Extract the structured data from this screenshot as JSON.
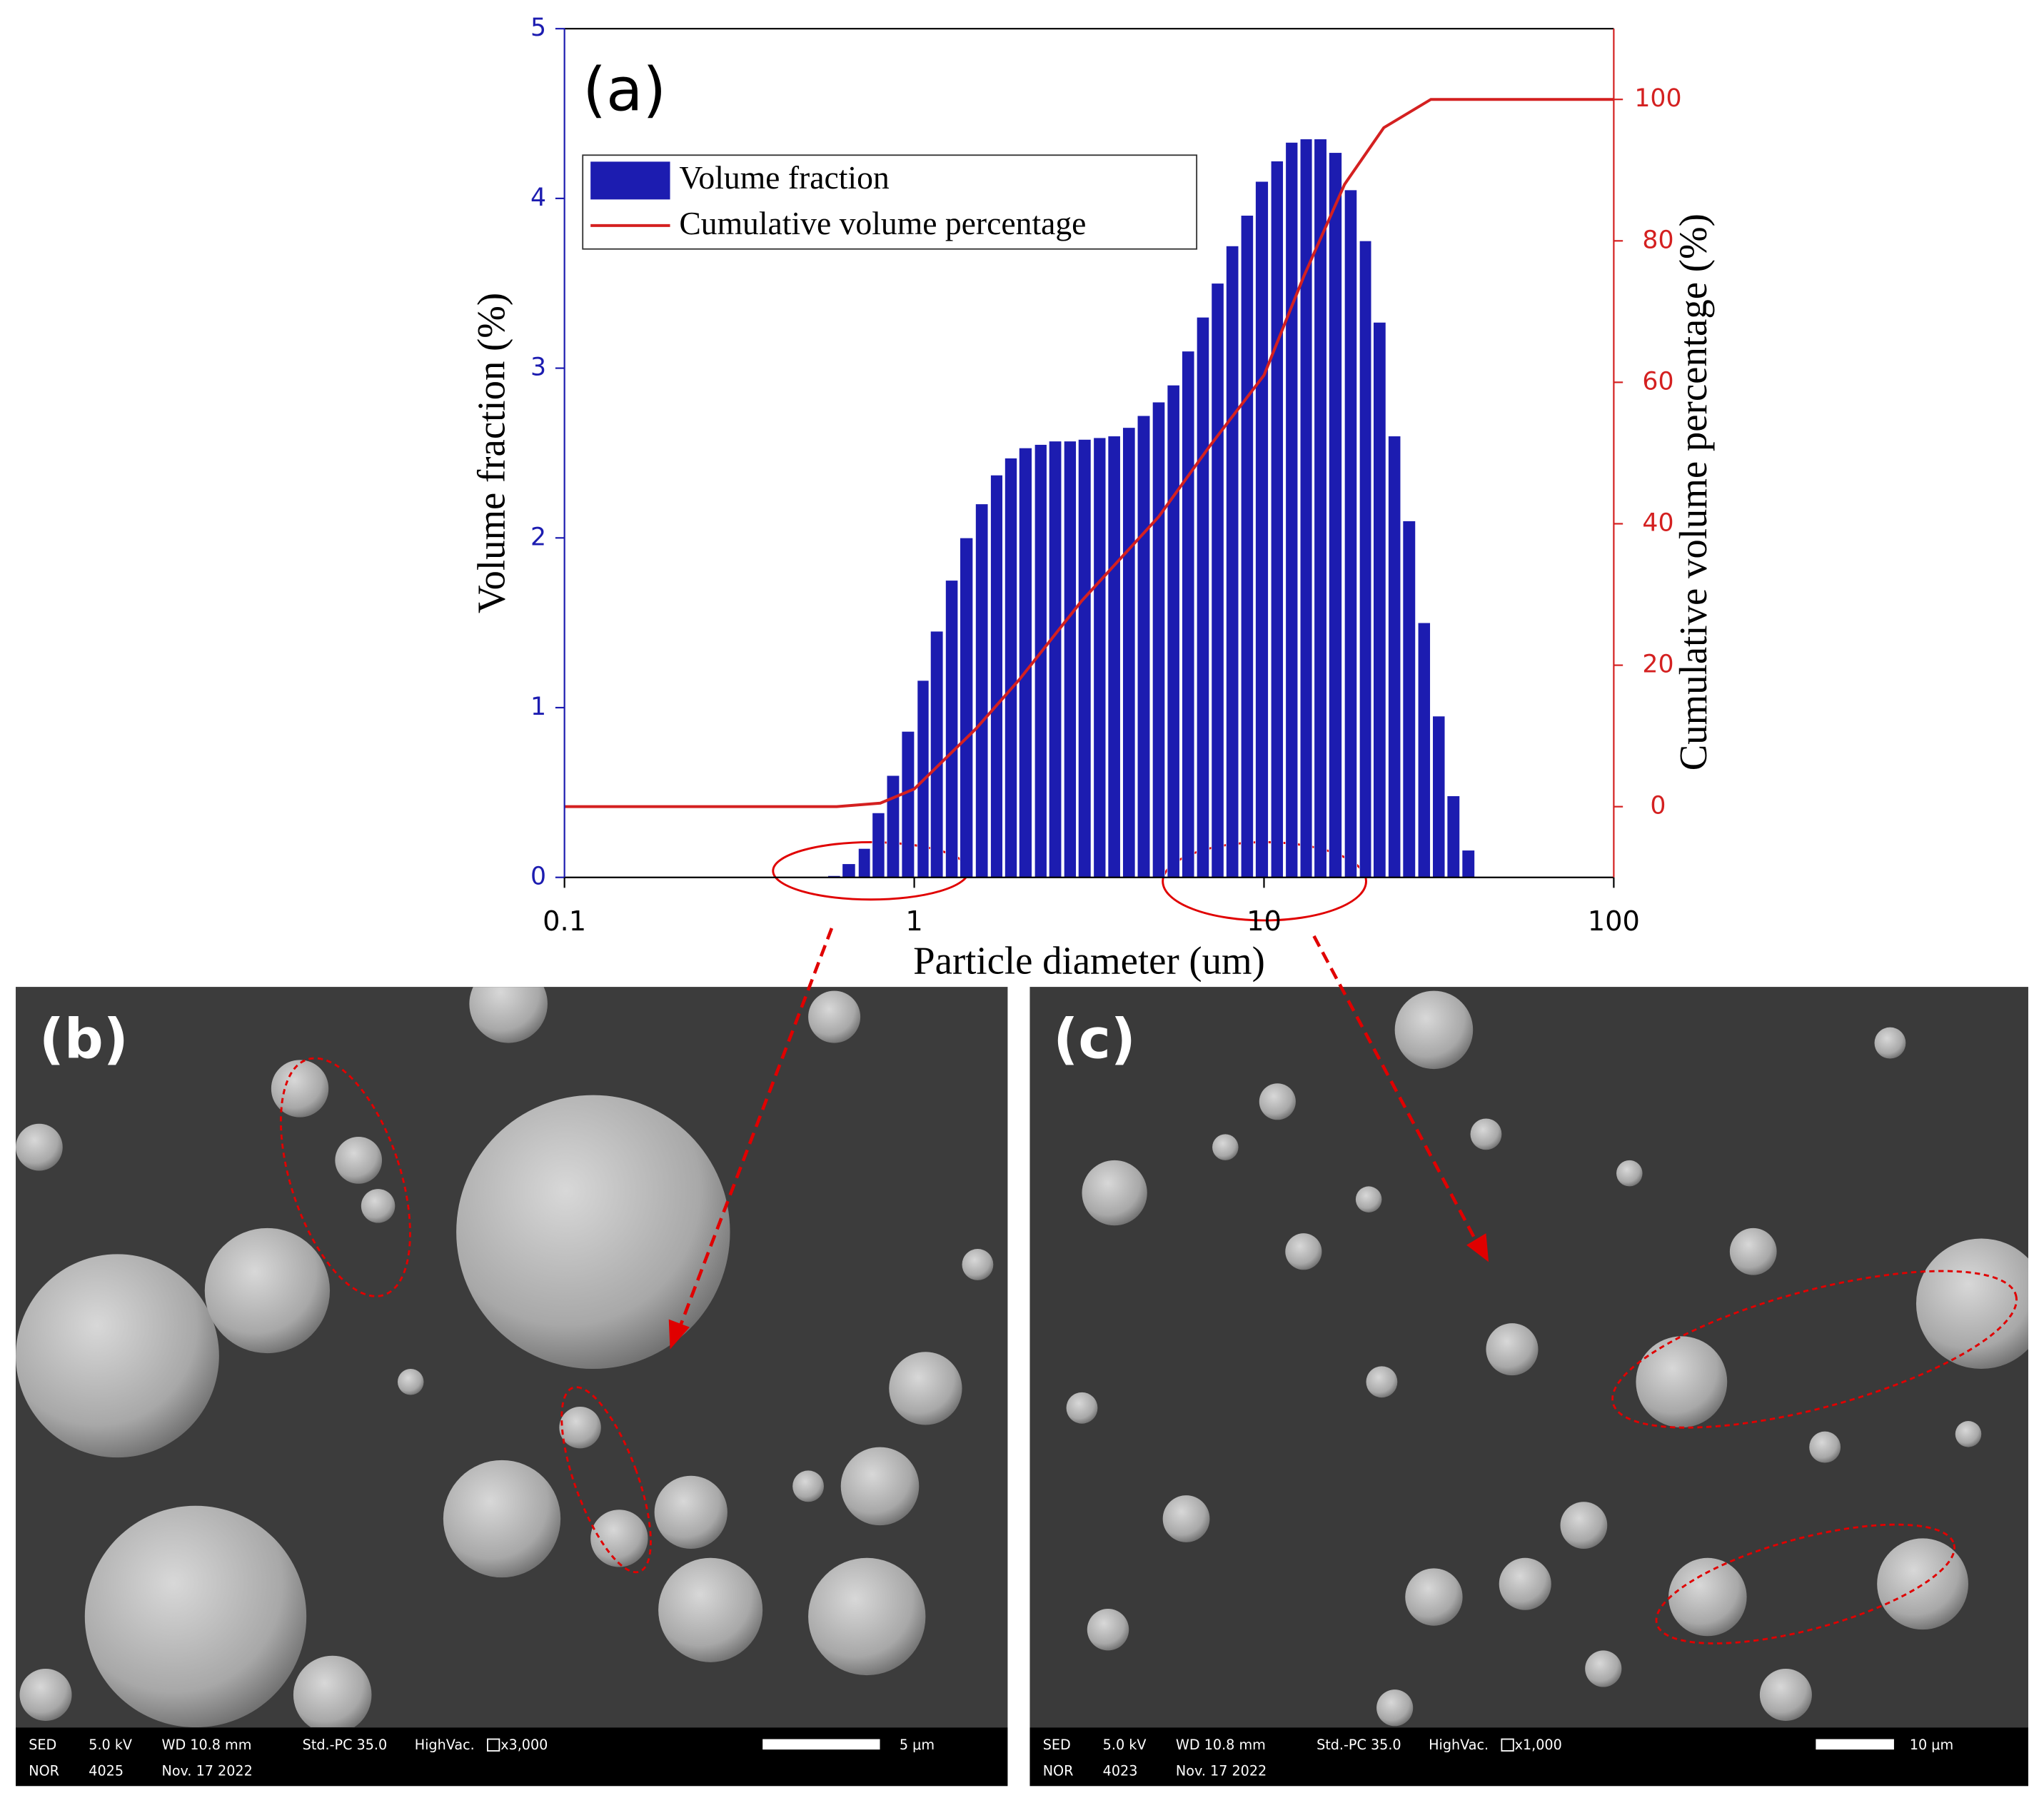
{
  "chart_data": {
    "type": "bar",
    "title": "(a)",
    "x_label": "Particle diameter (um)",
    "y_label": "Volume fraction (%)",
    "y2_label": "Cumulative volume percentage (%)",
    "xscale": "log",
    "xlim": [
      0.1,
      100
    ],
    "xticks": [
      0.1,
      1,
      10,
      100
    ],
    "ylim": [
      0,
      5
    ],
    "yticks": [
      0,
      1,
      2,
      3,
      4,
      5
    ],
    "y2lim": [
      -10,
      110
    ],
    "y2ticks": [
      0,
      20,
      40,
      60,
      80,
      100
    ],
    "legend": "upper left",
    "series": [
      {
        "name": "Volume fraction",
        "color": "#1c1cb0",
        "x": [
          0.59,
          0.65,
          0.72,
          0.79,
          0.87,
          0.96,
          1.06,
          1.16,
          1.28,
          1.41,
          1.56,
          1.72,
          1.89,
          2.08,
          2.3,
          2.53,
          2.79,
          3.07,
          3.39,
          3.73,
          4.11,
          4.53,
          5.0,
          5.51,
          6.07,
          6.69,
          7.37,
          8.12,
          8.95,
          9.86,
          10.9,
          12.0,
          13.2,
          14.5,
          16.0,
          17.7,
          19.5,
          21.4,
          23.6,
          26.0,
          28.7,
          31.6,
          34.8,
          38.4
        ],
        "values": [
          0.01,
          0.08,
          0.17,
          0.38,
          0.6,
          0.86,
          1.16,
          1.45,
          1.75,
          2.0,
          2.2,
          2.37,
          2.47,
          2.53,
          2.55,
          2.57,
          2.57,
          2.58,
          2.59,
          2.6,
          2.65,
          2.72,
          2.8,
          2.9,
          3.1,
          3.3,
          3.5,
          3.72,
          3.9,
          4.1,
          4.22,
          4.33,
          4.35,
          4.35,
          4.27,
          4.05,
          3.75,
          3.27,
          2.6,
          2.1,
          1.5,
          0.95,
          0.48,
          0.16
        ]
      },
      {
        "name": "Cumulative volume percentage",
        "color": "#d42020",
        "axis": "y2",
        "type": "line",
        "x": [
          0.1,
          0.6,
          0.8,
          1,
          1.5,
          2,
          3,
          5,
          7,
          10,
          13,
          17,
          22,
          30,
          100
        ],
        "values": [
          0,
          0,
          0.5,
          2.5,
          11,
          18,
          29,
          41,
          51,
          61,
          75,
          88,
          96,
          100,
          100
        ]
      }
    ]
  },
  "panels": [
    {
      "label": "(b)",
      "line1": [
        "SED",
        "5.0 kV",
        "WD 10.8 mm",
        "Std.-PC 35.0",
        "HighVac.",
        "x3,000"
      ],
      "line2": [
        "NOR",
        "4025",
        "Nov. 17 2022"
      ],
      "scale": "5 μm"
    },
    {
      "label": "(c)",
      "line1": [
        "SED",
        "5.0 kV",
        "WD 10.8 mm",
        "Std.-PC 35.0",
        "HighVac.",
        "x1,000"
      ],
      "line2": [
        "NOR",
        "4023",
        "Nov. 17 2022"
      ],
      "scale": "10 μm"
    }
  ]
}
